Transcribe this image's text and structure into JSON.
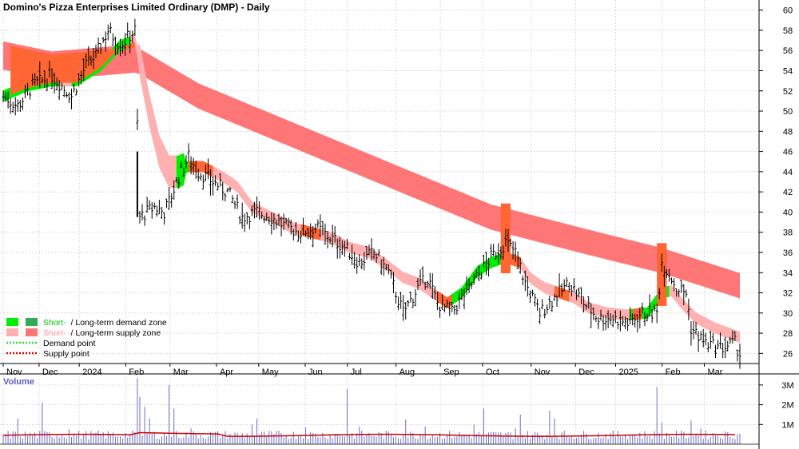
{
  "chart_data": {
    "type": "candlestick",
    "title": "Domino's Pizza Enterprises Limited Ordinary (DMP) - Daily",
    "ylim": [
      25,
      61
    ],
    "yticks": [
      26,
      28,
      30,
      32,
      34,
      36,
      38,
      40,
      42,
      44,
      46,
      48,
      50,
      52,
      54,
      56,
      58,
      60
    ],
    "months": [
      "Nov",
      "Dec",
      "2024",
      "Feb",
      "Mar",
      "Apr",
      "May",
      "Jun",
      "Jul",
      "Aug",
      "Sep",
      "Oct",
      "Nov",
      "Dec",
      "2025",
      "Feb",
      "Mar"
    ],
    "price_anchors": [
      [
        0,
        51.5
      ],
      [
        6,
        50.5
      ],
      [
        12,
        52.5
      ],
      [
        20,
        53.5
      ],
      [
        28,
        51.5
      ],
      [
        34,
        54.5
      ],
      [
        38,
        55.5
      ],
      [
        43,
        58
      ],
      [
        48,
        56.5
      ],
      [
        52,
        57.5
      ],
      [
        54,
        58
      ],
      [
        56,
        39.5
      ],
      [
        62,
        40.5
      ],
      [
        66,
        40
      ],
      [
        68,
        41
      ],
      [
        72,
        43.5
      ],
      [
        76,
        45.5
      ],
      [
        80,
        44
      ],
      [
        86,
        43
      ],
      [
        92,
        42
      ],
      [
        98,
        39.5
      ],
      [
        104,
        40
      ],
      [
        110,
        39.5
      ],
      [
        116,
        38.5
      ],
      [
        122,
        38
      ],
      [
        128,
        38.5
      ],
      [
        134,
        37.5
      ],
      [
        140,
        36.5
      ],
      [
        146,
        35
      ],
      [
        152,
        36
      ],
      [
        158,
        34
      ],
      [
        164,
        30
      ],
      [
        170,
        32.5
      ],
      [
        174,
        33.5
      ],
      [
        178,
        31
      ],
      [
        184,
        30
      ],
      [
        188,
        31.5
      ],
      [
        194,
        33.5
      ],
      [
        200,
        35.5
      ],
      [
        206,
        37
      ],
      [
        210,
        36
      ],
      [
        214,
        33
      ],
      [
        220,
        30
      ],
      [
        226,
        31.5
      ],
      [
        232,
        33
      ],
      [
        238,
        31
      ],
      [
        244,
        29.5
      ],
      [
        250,
        29.5
      ],
      [
        256,
        29
      ],
      [
        262,
        30
      ],
      [
        268,
        30
      ],
      [
        270,
        35
      ],
      [
        273,
        34
      ],
      [
        276,
        32.5
      ],
      [
        280,
        32
      ],
      [
        282,
        28.5
      ],
      [
        288,
        27
      ],
      [
        294,
        26.5
      ],
      [
        300,
        27
      ],
      [
        302,
        26
      ]
    ],
    "gap_bar": {
      "index": 55,
      "high": 46,
      "low": 39.5
    },
    "short_ma_anchors": [
      [
        0,
        51.5
      ],
      [
        10,
        52.5
      ],
      [
        20,
        53
      ],
      [
        30,
        53
      ],
      [
        40,
        54.5
      ],
      [
        48,
        56.5
      ],
      [
        54,
        57
      ],
      [
        56,
        55
      ],
      [
        60,
        50
      ],
      [
        64,
        46
      ],
      [
        68,
        44
      ],
      [
        72,
        44
      ],
      [
        76,
        44.5
      ],
      [
        82,
        44.5
      ],
      [
        90,
        43.5
      ],
      [
        96,
        42.5
      ],
      [
        102,
        40.5
      ],
      [
        110,
        39.5
      ],
      [
        118,
        38.5
      ],
      [
        126,
        38
      ],
      [
        134,
        37.5
      ],
      [
        142,
        36.5
      ],
      [
        150,
        36
      ],
      [
        156,
        35
      ],
      [
        164,
        33.5
      ],
      [
        170,
        33
      ],
      [
        176,
        32
      ],
      [
        182,
        31
      ],
      [
        188,
        32
      ],
      [
        194,
        34
      ],
      [
        200,
        35
      ],
      [
        206,
        35.5
      ],
      [
        212,
        35
      ],
      [
        216,
        33.5
      ],
      [
        222,
        32.5
      ],
      [
        228,
        32
      ],
      [
        234,
        31.5
      ],
      [
        240,
        30.5
      ],
      [
        248,
        30
      ],
      [
        256,
        29.8
      ],
      [
        264,
        30
      ],
      [
        270,
        32
      ],
      [
        274,
        32.2
      ],
      [
        278,
        31
      ],
      [
        284,
        29.5
      ],
      [
        292,
        28.5
      ],
      [
        302,
        27.6
      ]
    ],
    "long_ma_anchors": [
      [
        0,
        55.5
      ],
      [
        20,
        54.5
      ],
      [
        54,
        55.2
      ],
      [
        80,
        51.5
      ],
      [
        120,
        47.5
      ],
      [
        160,
        43.5
      ],
      [
        200,
        39.5
      ],
      [
        240,
        37
      ],
      [
        270,
        35.2
      ],
      [
        302,
        32.7
      ]
    ],
    "volume_ylim": [
      0,
      3.4
    ],
    "volume_yticks": [
      {
        "v": 1,
        "label": "1M"
      },
      {
        "v": 2,
        "label": "2M"
      },
      {
        "v": 3,
        "label": "3M"
      }
    ],
    "volume_spikes": [
      [
        6,
        1.3
      ],
      [
        16,
        2.1
      ],
      [
        27,
        0.75
      ],
      [
        55,
        3.35
      ],
      [
        56,
        2.4
      ],
      [
        58,
        1.9
      ],
      [
        60,
        1.3
      ],
      [
        68,
        3.0
      ],
      [
        70,
        1.8
      ],
      [
        77,
        0.8
      ],
      [
        102,
        1.0
      ],
      [
        104,
        1.3
      ],
      [
        124,
        0.85
      ],
      [
        141,
        2.8
      ],
      [
        146,
        0.9
      ],
      [
        165,
        1.25
      ],
      [
        173,
        0.9
      ],
      [
        193,
        1.0
      ],
      [
        197,
        1.8
      ],
      [
        210,
        0.8
      ],
      [
        212,
        1.5
      ],
      [
        224,
        1.7
      ],
      [
        226,
        1.3
      ],
      [
        268,
        2.9
      ],
      [
        270,
        1.1
      ],
      [
        282,
        1.2
      ],
      [
        286,
        0.8
      ]
    ],
    "volume_avg": 0.45,
    "legend": [
      {
        "short": "Short-",
        "long": "/ Long-term demand zone"
      },
      {
        "short": "Short-",
        "long": "/ Long-term supply zone"
      },
      {
        "label": "Demand point"
      },
      {
        "label": "Supply point"
      }
    ],
    "volume_label": "Volume",
    "colors": {
      "long_supply": "#ff7676",
      "short_supply": "#ffb0b0",
      "short_demand": "#00ee00",
      "long_demand": "#33aa55",
      "overlap": "#ff6633",
      "demand_point": "#33dd33",
      "supply_point": "#dd0000",
      "volume_bar": "#6e6ec8",
      "volume_avg": "#cc0000",
      "grid": "#c8c8c8"
    }
  }
}
